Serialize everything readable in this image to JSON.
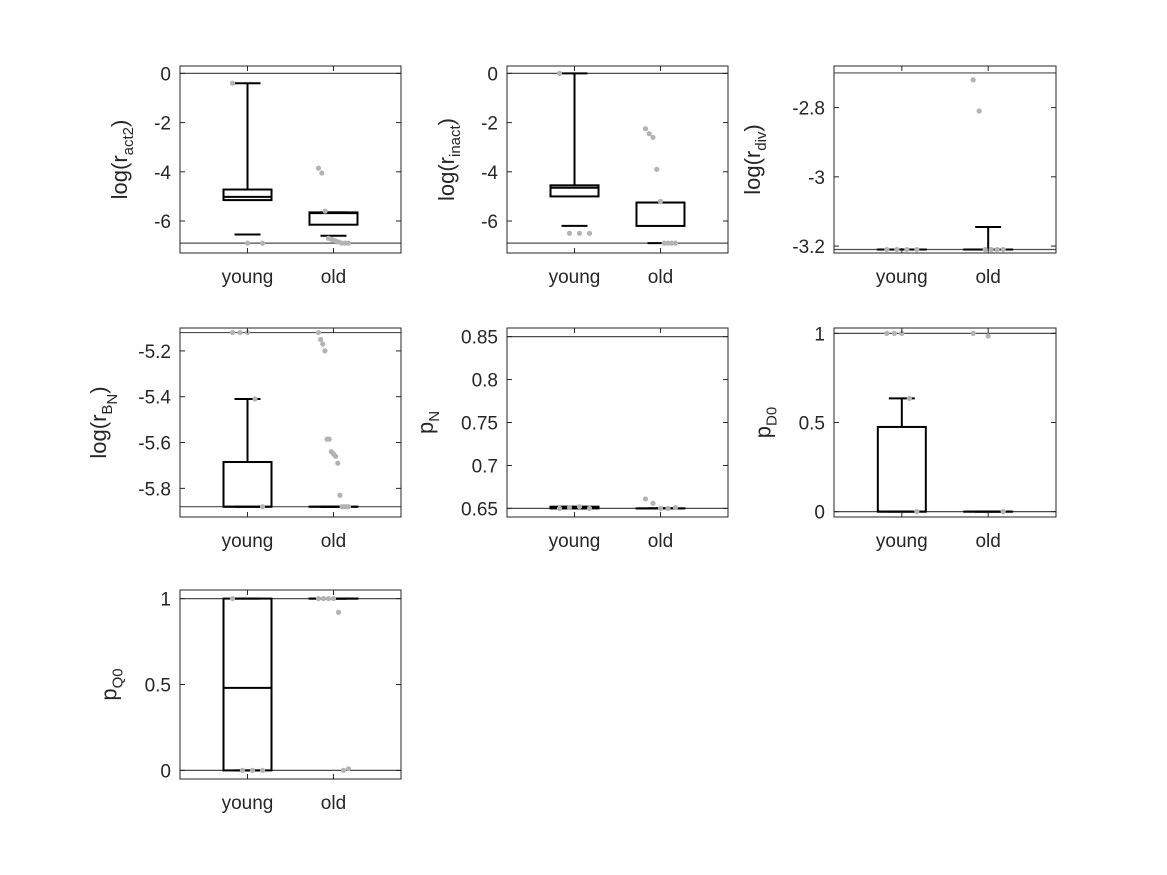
{
  "chart_data": [
    {
      "type": "box",
      "categories": [
        "young",
        "old"
      ],
      "ylabel": {
        "base": "log(r",
        "sub": "act2",
        "close": ")"
      },
      "ylim": [
        -7.3,
        0.3
      ],
      "yticks": [
        0,
        -2,
        -4,
        -6
      ],
      "ytick_labels": [
        "0",
        "-2",
        "-4",
        "-6"
      ],
      "reference_lines": [
        0,
        -6.9
      ],
      "boxes": [
        {
          "category": "young",
          "whisker_low": -6.55,
          "q1": -5.15,
          "median": -5.02,
          "q3": -4.72,
          "whisker_high": -0.4
        },
        {
          "category": "old",
          "whisker_low": -6.6,
          "q1": -6.15,
          "median": -5.68,
          "q3": -5.65,
          "whisker_high": -5.65
        }
      ],
      "points": [
        {
          "category": "young",
          "values": [
            -0.4,
            -6.9,
            -6.9
          ]
        },
        {
          "category": "old",
          "values": [
            -3.85,
            -4.05,
            -5.6,
            -6.7,
            -6.75,
            -6.8,
            -6.85,
            -6.9,
            -6.9,
            -6.9
          ]
        }
      ]
    },
    {
      "type": "box",
      "categories": [
        "young",
        "old"
      ],
      "ylabel": {
        "base": "log(r",
        "sub": "inact",
        "close": ")"
      },
      "ylim": [
        -7.3,
        0.3
      ],
      "yticks": [
        0,
        -2,
        -4,
        -6
      ],
      "ytick_labels": [
        "0",
        "-2",
        "-4",
        "-6"
      ],
      "reference_lines": [
        0,
        -6.9
      ],
      "boxes": [
        {
          "category": "young",
          "whisker_low": -6.2,
          "q1": -5.0,
          "median": -4.65,
          "q3": -4.55,
          "whisker_high": 0.0
        },
        {
          "category": "old",
          "whisker_low": -6.9,
          "q1": -6.2,
          "median": -5.25,
          "q3": -5.25,
          "whisker_high": -5.25
        }
      ],
      "points": [
        {
          "category": "young",
          "values": [
            0.0,
            -6.5,
            -6.5,
            -6.5
          ]
        },
        {
          "category": "old",
          "values": [
            -2.25,
            -2.45,
            -2.6,
            -3.9,
            -5.2,
            -6.9,
            -6.9,
            -6.9,
            -6.9
          ]
        }
      ]
    },
    {
      "type": "box",
      "categories": [
        "young",
        "old"
      ],
      "ylabel": {
        "base": "log(r",
        "sub": "div",
        "close": ")"
      },
      "ylim": [
        -3.22,
        -2.68
      ],
      "yticks": [
        -2.8,
        -3.0,
        -3.2
      ],
      "ytick_labels": [
        "-2.8",
        "-3",
        "-3.2"
      ],
      "reference_lines": [
        -2.7,
        -3.21
      ],
      "boxes": [
        {
          "category": "young",
          "whisker_low": -3.21,
          "q1": -3.21,
          "median": -3.21,
          "q3": -3.21,
          "whisker_high": -3.21
        },
        {
          "category": "old",
          "whisker_low": -3.21,
          "q1": -3.21,
          "median": -3.21,
          "q3": -3.21,
          "whisker_high": -3.145
        }
      ],
      "points": [
        {
          "category": "young",
          "values": [
            -3.21,
            -3.21,
            -3.21,
            -3.21
          ]
        },
        {
          "category": "old",
          "values": [
            -2.72,
            -2.81,
            -3.21,
            -3.21,
            -3.21,
            -3.21
          ]
        }
      ]
    },
    {
      "type": "box",
      "categories": [
        "young",
        "old"
      ],
      "ylabel": {
        "base": "log(r",
        "sub": "B",
        "subsub": "N",
        "close": ")"
      },
      "ylim": [
        -5.925,
        -5.1
      ],
      "yticks": [
        -5.2,
        -5.4,
        -5.6,
        -5.8
      ],
      "ytick_labels": [
        "-5.2",
        "-5.4",
        "-5.6",
        "-5.8"
      ],
      "reference_lines": [
        -5.12,
        -5.88
      ],
      "boxes": [
        {
          "category": "young",
          "whisker_low": -5.88,
          "q1": -5.88,
          "median": -5.88,
          "q3": -5.685,
          "whisker_high": -5.41
        },
        {
          "category": "old",
          "whisker_low": -5.88,
          "q1": -5.88,
          "median": -5.88,
          "q3": -5.88,
          "whisker_high": -5.88
        }
      ],
      "points": [
        {
          "category": "young",
          "values": [
            -5.12,
            -5.12,
            -5.12,
            -5.41,
            -5.88
          ]
        },
        {
          "category": "old",
          "values": [
            -5.12,
            -5.15,
            -5.17,
            -5.2,
            -5.585,
            -5.585,
            -5.64,
            -5.65,
            -5.66,
            -5.69,
            -5.83,
            -5.88,
            -5.88,
            -5.88,
            -5.88
          ]
        }
      ]
    },
    {
      "type": "box",
      "categories": [
        "young",
        "old"
      ],
      "ylabel": {
        "base": "p",
        "sub": "N",
        "close": ""
      },
      "ylim": [
        0.64,
        0.86
      ],
      "yticks": [
        0.85,
        0.8,
        0.75,
        0.7,
        0.65
      ],
      "ytick_labels": [
        "0.85",
        "0.8",
        "0.75",
        "0.7",
        "0.65"
      ],
      "reference_lines": [
        0.85,
        0.65
      ],
      "boxes": [
        {
          "category": "young",
          "whisker_low": 0.65,
          "q1": 0.65,
          "median": 0.651,
          "q3": 0.652,
          "whisker_high": 0.652
        },
        {
          "category": "old",
          "whisker_low": 0.65,
          "q1": 0.65,
          "median": 0.65,
          "q3": 0.65,
          "whisker_high": 0.65
        }
      ],
      "points": [
        {
          "category": "young",
          "values": [
            0.65,
            0.651,
            0.652,
            0.65
          ]
        },
        {
          "category": "old",
          "values": [
            0.661,
            0.656,
            0.65,
            0.65,
            0.651
          ]
        }
      ]
    },
    {
      "type": "box",
      "categories": [
        "young",
        "old"
      ],
      "ylabel": {
        "base": "p",
        "sub": "D0",
        "close": ""
      },
      "ylim": [
        -0.03,
        1.03
      ],
      "yticks": [
        1,
        0.5,
        0
      ],
      "ytick_labels": [
        "1",
        "0.5",
        "0"
      ],
      "reference_lines": [
        1,
        0
      ],
      "boxes": [
        {
          "category": "young",
          "whisker_low": 0.0,
          "q1": 0.0,
          "median": 0.0,
          "q3": 0.475,
          "whisker_high": 0.635
        },
        {
          "category": "old",
          "whisker_low": 0.0,
          "q1": 0.0,
          "median": 0.0,
          "q3": 0.0,
          "whisker_high": 0.0
        }
      ],
      "points": [
        {
          "category": "young",
          "values": [
            1.0,
            1.0,
            1.0,
            0.635,
            0.0
          ]
        },
        {
          "category": "old",
          "values": [
            1.0,
            0.985,
            0.0
          ]
        }
      ]
    },
    {
      "type": "box",
      "categories": [
        "young",
        "old"
      ],
      "ylabel": {
        "base": "p",
        "sub": "Q0",
        "close": ""
      },
      "ylim": [
        -0.05,
        1.05
      ],
      "yticks": [
        1,
        0.5,
        0
      ],
      "ytick_labels": [
        "1",
        "0.5",
        "0"
      ],
      "reference_lines": [
        1,
        0
      ],
      "boxes": [
        {
          "category": "young",
          "whisker_low": 0.0,
          "q1": 0.0,
          "median": 0.48,
          "q3": 1.0,
          "whisker_high": 1.0
        },
        {
          "category": "old",
          "whisker_low": 1.0,
          "q1": 1.0,
          "median": 1.0,
          "q3": 1.0,
          "whisker_high": 1.0
        }
      ],
      "points": [
        {
          "category": "young",
          "values": [
            1.0,
            0.0,
            0.0,
            0.0
          ]
        },
        {
          "category": "old",
          "values": [
            1.0,
            1.0,
            1.0,
            1.0,
            0.92,
            0.0,
            0.01
          ]
        }
      ]
    }
  ],
  "colors": {
    "axis": "#262626",
    "reference_line": "#4d4d4d",
    "box": "#000000",
    "points": "#b3b3b3"
  }
}
